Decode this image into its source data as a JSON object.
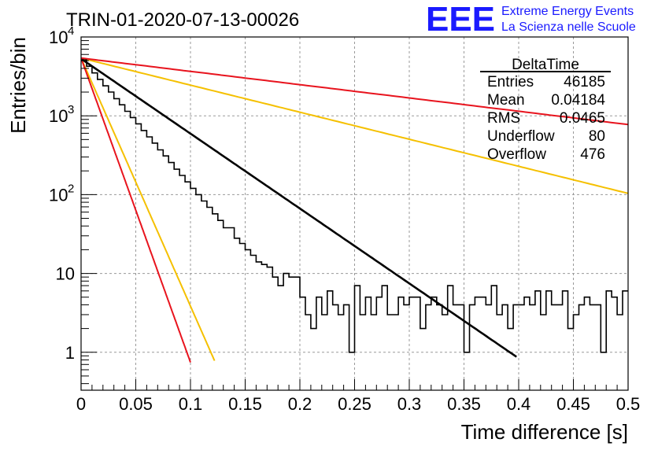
{
  "chart_data": {
    "type": "histogram",
    "title": "TRIN-01-2020-07-13-00026",
    "xlabel": "Time difference [s]",
    "ylabel": "Entries/bin",
    "xlim": [
      0,
      0.5
    ],
    "ylim": [
      0.33,
      10000
    ],
    "yscale": "log",
    "grid": true,
    "x_ticks": [
      "0",
      "0.05",
      "0.1",
      "0.15",
      "0.2",
      "0.25",
      "0.3",
      "0.35",
      "0.4",
      "0.45",
      "0.5"
    ],
    "y_ticks": [
      "1",
      "10"
    ],
    "y_ticks_exp": [
      {
        "base": "10",
        "exp": "2",
        "value": 100
      },
      {
        "base": "10",
        "exp": "3",
        "value": 1000
      },
      {
        "base": "10",
        "exp": "4",
        "value": 10000
      }
    ],
    "histogram": {
      "name": "DeltaTime",
      "bin_width": 0.005,
      "x_start": 0,
      "counts": [
        5100,
        4250,
        3500,
        2900,
        2400,
        2000,
        1650,
        1380,
        1140,
        950,
        790,
        650,
        540,
        450,
        370,
        310,
        255,
        210,
        175,
        145,
        120,
        100,
        83,
        69,
        57,
        47,
        38,
        38,
        28,
        24,
        20,
        17,
        14,
        13,
        12,
        9,
        7,
        10,
        9,
        9,
        5,
        3,
        2,
        5,
        3,
        6,
        4,
        3,
        4,
        1,
        7,
        3,
        5,
        3,
        5,
        7,
        3,
        3,
        5,
        4,
        5,
        5,
        2,
        4,
        5,
        4,
        3,
        7,
        4,
        4,
        1,
        4,
        5,
        5,
        4,
        7,
        3,
        4,
        2,
        4,
        4,
        5,
        4,
        6,
        3,
        6,
        4,
        4,
        6,
        2,
        3,
        4,
        5,
        4,
        4,
        1,
        6,
        5,
        3,
        6
      ]
    },
    "fits": [
      {
        "name": "fit",
        "color": "#000000",
        "amplitude": 5300,
        "tau": 0.0457,
        "x_end": 0.398
      },
      {
        "name": "upper-slow",
        "color": "#e8141e",
        "amplitude": 5400,
        "tau": 0.2575,
        "x_end": 0.5
      },
      {
        "name": "upper-fast",
        "color": "#e8141e",
        "amplitude": 5400,
        "tau": 0.01125,
        "x_end": 0.1
      }
    ],
    "fits_secondary": [
      {
        "name": "lower-slow",
        "color": "#f5c000",
        "amplitude": 5400,
        "tau": 0.1265,
        "x_end": 0.5
      },
      {
        "name": "lower-fast",
        "color": "#f5c000",
        "amplitude": 5400,
        "tau": 0.0138,
        "x_end": 0.122
      }
    ]
  },
  "stats_box": {
    "title": "DeltaTime",
    "rows": [
      {
        "label": "Entries",
        "value": "46185"
      },
      {
        "label": "Mean",
        "value": "0.04184"
      },
      {
        "label": "RMS",
        "value": "0.0465"
      },
      {
        "label": "Underflow",
        "value": "80"
      },
      {
        "label": "Overflow",
        "value": "476"
      }
    ]
  },
  "logo": {
    "text": "EEE",
    "line1": "Extreme Energy Events",
    "line2": "La Scienza nelle Scuole"
  },
  "colors": {
    "red": "#e8141e",
    "yellow": "#f5c000",
    "black": "#000000",
    "logo_blue": "#1a1aff",
    "grid": "#9a9a9a"
  }
}
